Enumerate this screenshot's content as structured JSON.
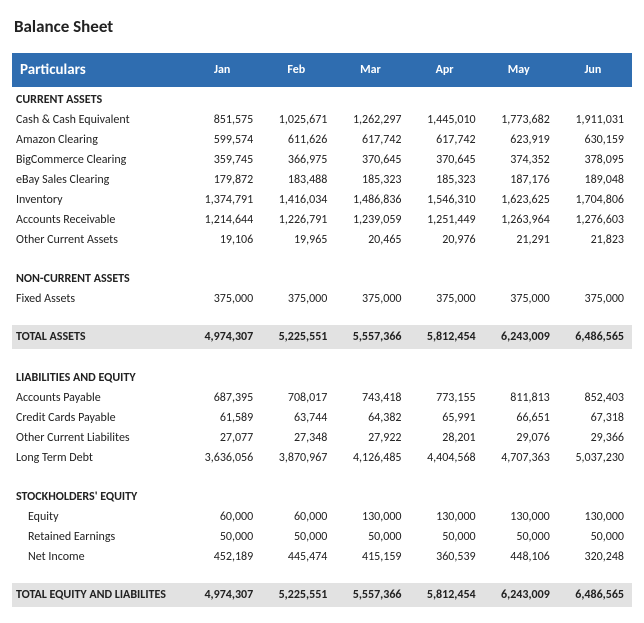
{
  "title": "Balance Sheet",
  "header": {
    "particulars": "Particulars",
    "months": [
      "Jan",
      "Feb",
      "Mar",
      "Apr",
      "May",
      "Jun"
    ]
  },
  "colors": {
    "header_bg": "#2f6db0",
    "header_text": "#ffffff",
    "total_bg": "#e2e2e2",
    "body_bg": "#ffffff",
    "text": "#222222"
  },
  "font": {
    "family": "Calibri",
    "title_size_pt": 13,
    "header_size_pt": 11,
    "body_size_pt": 9
  },
  "rows": [
    {
      "type": "section",
      "label": "CURRENT ASSETS"
    },
    {
      "type": "data",
      "label": "Cash & Cash Equivalent",
      "values": [
        "851,575",
        "1,025,671",
        "1,262,297",
        "1,445,010",
        "1,773,682",
        "1,911,031"
      ]
    },
    {
      "type": "data",
      "label": "Amazon Clearing",
      "values": [
        "599,574",
        "611,626",
        "617,742",
        "617,742",
        "623,919",
        "630,159"
      ]
    },
    {
      "type": "data",
      "label": "BigCommerce Clearing",
      "values": [
        "359,745",
        "366,975",
        "370,645",
        "370,645",
        "374,352",
        "378,095"
      ]
    },
    {
      "type": "data",
      "label": "eBay Sales Clearing",
      "values": [
        "179,872",
        "183,488",
        "185,323",
        "185,323",
        "187,176",
        "189,048"
      ]
    },
    {
      "type": "data",
      "label": "Inventory",
      "values": [
        "1,374,791",
        "1,416,034",
        "1,486,836",
        "1,546,310",
        "1,623,625",
        "1,704,806"
      ]
    },
    {
      "type": "data",
      "label": "Accounts Receivable",
      "values": [
        "1,214,644",
        "1,226,791",
        "1,239,059",
        "1,251,449",
        "1,263,964",
        "1,276,603"
      ]
    },
    {
      "type": "data",
      "label": "Other Current Assets",
      "values": [
        "19,106",
        "19,965",
        "20,465",
        "20,976",
        "21,291",
        "21,823"
      ]
    },
    {
      "type": "spacer"
    },
    {
      "type": "section",
      "label": "NON-CURRENT ASSETS"
    },
    {
      "type": "data",
      "label": "Fixed Assets",
      "values": [
        "375,000",
        "375,000",
        "375,000",
        "375,000",
        "375,000",
        "375,000"
      ]
    },
    {
      "type": "spacer"
    },
    {
      "type": "total",
      "label": "TOTAL ASSETS",
      "values": [
        "4,974,307",
        "5,225,551",
        "5,557,366",
        "5,812,454",
        "6,243,009",
        "6,486,565"
      ]
    },
    {
      "type": "spacer"
    },
    {
      "type": "section",
      "label": "LIABILITIES AND EQUITY"
    },
    {
      "type": "data",
      "label": "Accounts Payable",
      "values": [
        "687,395",
        "708,017",
        "743,418",
        "773,155",
        "811,813",
        "852,403"
      ]
    },
    {
      "type": "data",
      "label": "Credit Cards Payable",
      "values": [
        "61,589",
        "63,744",
        "64,382",
        "65,991",
        "66,651",
        "67,318"
      ]
    },
    {
      "type": "data",
      "label": "Other Current Liabilites",
      "values": [
        "27,077",
        "27,348",
        "27,922",
        "28,201",
        "29,076",
        "29,366"
      ]
    },
    {
      "type": "data",
      "label": "Long Term Debt",
      "values": [
        "3,636,056",
        "3,870,967",
        "4,126,485",
        "4,404,568",
        "4,707,363",
        "5,037,230"
      ]
    },
    {
      "type": "spacer"
    },
    {
      "type": "section",
      "label": "STOCKHOLDERS' EQUITY"
    },
    {
      "type": "data",
      "indent": true,
      "label": "Equity",
      "values": [
        "60,000",
        "60,000",
        "130,000",
        "130,000",
        "130,000",
        "130,000"
      ]
    },
    {
      "type": "data",
      "indent": true,
      "label": "Retained Earnings",
      "values": [
        "50,000",
        "50,000",
        "50,000",
        "50,000",
        "50,000",
        "50,000"
      ]
    },
    {
      "type": "data",
      "indent": true,
      "label": "Net Income",
      "values": [
        "452,189",
        "445,474",
        "415,159",
        "360,539",
        "448,106",
        "320,248"
      ]
    },
    {
      "type": "spacer"
    },
    {
      "type": "total",
      "label": "TOTAL EQUITY AND LIABILITES",
      "values": [
        "4,974,307",
        "5,225,551",
        "5,557,366",
        "5,812,454",
        "6,243,009",
        "6,486,565"
      ]
    }
  ]
}
